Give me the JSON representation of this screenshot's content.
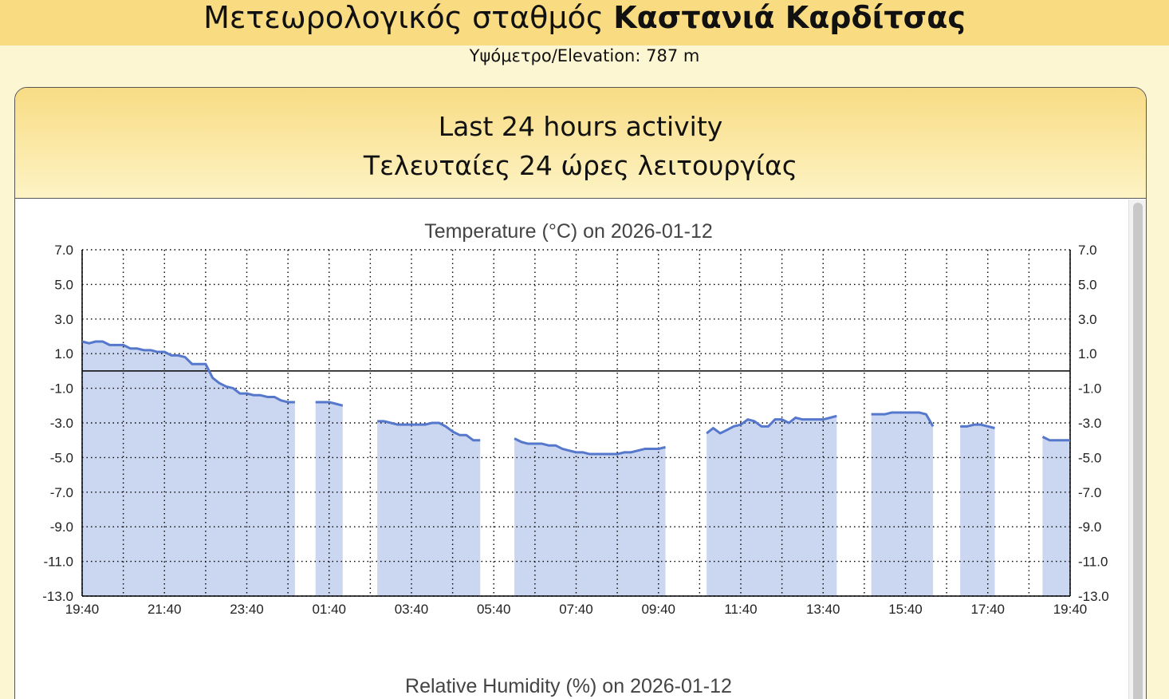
{
  "header": {
    "station_prefix": "Μετεωρολογικός σταθμός",
    "station_name": "Καστανιά Καρδίτσας",
    "elevation": "Υψόμετρο/Elevation: 787 m"
  },
  "panel": {
    "title_en": "Last 24 hours activity",
    "title_el": "Τελευταίες 24 ώρες λειτουργίας"
  },
  "colors": {
    "line": "#5577cc",
    "fill": "#cbd6f0",
    "header": "#f9dc82",
    "background": "#fdf6d2"
  },
  "chart_data": [
    {
      "type": "area",
      "title": "Temperature (°C) on 2026-01-12",
      "xlabel": "",
      "ylabel": "",
      "ylim": [
        -13,
        7
      ],
      "yticks": [
        "7.0",
        "5.0",
        "3.0",
        "1.0",
        "-1.0",
        "-3.0",
        "-5.0",
        "-7.0",
        "-9.0",
        "-11.0",
        "-13.0"
      ],
      "xticks": [
        "19:40",
        "21:40",
        "23:40",
        "01:40",
        "03:40",
        "05:40",
        "07:40",
        "09:40",
        "11:40",
        "13:40",
        "15:40",
        "17:40",
        "19:40"
      ],
      "x_unit": "hours since 19:40",
      "grid": true,
      "zero_line": true,
      "series": [
        {
          "segments": [
            [
              [
                0,
                1.7
              ],
              [
                0.17,
                1.6
              ],
              [
                0.33,
                1.7
              ],
              [
                0.5,
                1.7
              ],
              [
                0.67,
                1.5
              ],
              [
                1.0,
                1.5
              ],
              [
                1.17,
                1.3
              ],
              [
                1.33,
                1.3
              ],
              [
                1.5,
                1.2
              ],
              [
                1.67,
                1.2
              ],
              [
                1.83,
                1.1
              ],
              [
                2.0,
                1.1
              ],
              [
                2.17,
                0.9
              ],
              [
                2.33,
                0.9
              ],
              [
                2.5,
                0.8
              ],
              [
                2.67,
                0.4
              ],
              [
                3.0,
                0.4
              ],
              [
                3.17,
                -0.4
              ],
              [
                3.33,
                -0.7
              ],
              [
                3.5,
                -0.9
              ],
              [
                3.67,
                -1.0
              ],
              [
                3.83,
                -1.3
              ],
              [
                4.0,
                -1.3
              ],
              [
                4.17,
                -1.4
              ],
              [
                4.33,
                -1.4
              ],
              [
                4.5,
                -1.5
              ],
              [
                4.67,
                -1.5
              ],
              [
                4.83,
                -1.7
              ],
              [
                5.0,
                -1.8
              ],
              [
                5.17,
                -1.8
              ]
            ],
            [
              [
                5.67,
                -1.8
              ],
              [
                6.0,
                -1.8
              ],
              [
                6.17,
                -1.9
              ],
              [
                6.33,
                -2.0
              ]
            ],
            [
              [
                7.17,
                -2.9
              ],
              [
                7.33,
                -2.9
              ],
              [
                7.5,
                -3.0
              ],
              [
                7.67,
                -3.1
              ],
              [
                8.0,
                -3.1
              ],
              [
                8.17,
                -3.1
              ],
              [
                8.33,
                -3.1
              ],
              [
                8.5,
                -3.0
              ],
              [
                8.67,
                -3.0
              ],
              [
                8.83,
                -3.2
              ],
              [
                9.0,
                -3.5
              ],
              [
                9.17,
                -3.7
              ],
              [
                9.33,
                -3.7
              ],
              [
                9.5,
                -4.0
              ],
              [
                9.67,
                -4.0
              ]
            ],
            [
              [
                10.5,
                -3.9
              ],
              [
                10.67,
                -4.1
              ],
              [
                10.83,
                -4.2
              ],
              [
                11.17,
                -4.2
              ],
              [
                11.33,
                -4.3
              ],
              [
                11.5,
                -4.3
              ],
              [
                11.67,
                -4.5
              ],
              [
                11.83,
                -4.6
              ],
              [
                12.0,
                -4.7
              ],
              [
                12.17,
                -4.7
              ],
              [
                12.33,
                -4.8
              ],
              [
                13.0,
                -4.8
              ],
              [
                13.17,
                -4.7
              ],
              [
                13.33,
                -4.7
              ],
              [
                13.5,
                -4.6
              ],
              [
                13.67,
                -4.5
              ],
              [
                14.0,
                -4.5
              ],
              [
                14.17,
                -4.4
              ]
            ],
            [
              [
                15.17,
                -3.6
              ],
              [
                15.33,
                -3.3
              ],
              [
                15.5,
                -3.6
              ],
              [
                15.67,
                -3.4
              ],
              [
                15.83,
                -3.2
              ],
              [
                16.0,
                -3.1
              ],
              [
                16.17,
                -2.8
              ],
              [
                16.33,
                -2.9
              ],
              [
                16.5,
                -3.2
              ],
              [
                16.67,
                -3.2
              ],
              [
                16.83,
                -2.8
              ],
              [
                17.0,
                -2.8
              ],
              [
                17.17,
                -3.0
              ],
              [
                17.33,
                -2.7
              ],
              [
                17.5,
                -2.8
              ],
              [
                17.83,
                -2.8
              ],
              [
                18.0,
                -2.8
              ],
              [
                18.17,
                -2.7
              ],
              [
                18.33,
                -2.6
              ]
            ],
            [
              [
                19.17,
                -2.5
              ],
              [
                19.5,
                -2.5
              ],
              [
                19.67,
                -2.4
              ],
              [
                20.17,
                -2.4
              ],
              [
                20.33,
                -2.4
              ],
              [
                20.5,
                -2.5
              ],
              [
                20.67,
                -3.2
              ]
            ],
            [
              [
                21.33,
                -3.2
              ],
              [
                21.5,
                -3.2
              ],
              [
                21.67,
                -3.1
              ],
              [
                21.83,
                -3.1
              ],
              [
                22.0,
                -3.2
              ],
              [
                22.17,
                -3.3
              ]
            ],
            [
              [
                23.33,
                -3.8
              ],
              [
                23.5,
                -4.0
              ],
              [
                23.67,
                -4.0
              ],
              [
                24.0,
                -4.0
              ]
            ]
          ]
        }
      ]
    },
    {
      "type": "area",
      "title": "Relative Humidity (%) on 2026-01-12",
      "ylim": [
        0,
        100
      ]
    }
  ]
}
